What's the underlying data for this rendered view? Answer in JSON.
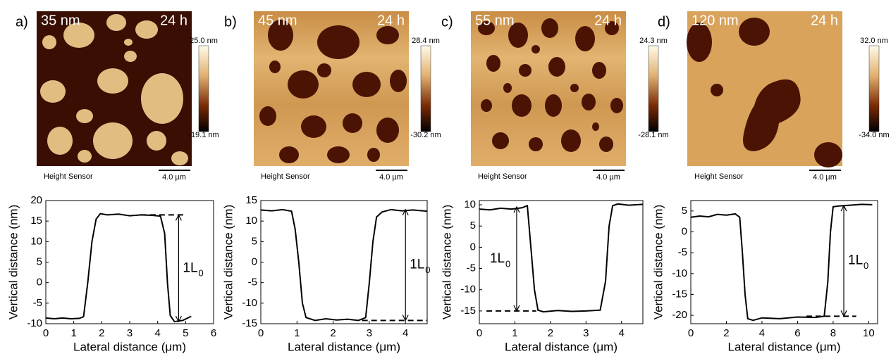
{
  "panels": [
    {
      "label": "a)",
      "thickness": "35 nm",
      "time": "24 h",
      "cbar_max": "25.0 nm",
      "cbar_min": "-19.1 nm",
      "sensor": "Height Sensor",
      "scale": "4.0 µm"
    },
    {
      "label": "b)",
      "thickness": "45 nm",
      "time": "24 h",
      "cbar_max": "28.4 nm",
      "cbar_min": "-30.2 nm",
      "sensor": "Height Sensor",
      "scale": "4.0 µm"
    },
    {
      "label": "c)",
      "thickness": "55 nm",
      "time": "24 h",
      "cbar_max": "24.3 nm",
      "cbar_min": "-28.1 nm",
      "sensor": "Height Sensor",
      "scale": "4.0 µm"
    },
    {
      "label": "d)",
      "thickness": "120 nm",
      "time": "24 h",
      "cbar_max": "32.0 nm",
      "cbar_min": "-34.0 nm",
      "sensor": "Height Sensor",
      "scale": "4.0 µm"
    }
  ],
  "chart_data": [
    {
      "type": "line",
      "x_label": "Lateral distance (μm)",
      "y_label": "Vertical distance (nm)",
      "color": "#000000",
      "x": [
        0,
        0.3,
        0.6,
        0.9,
        1.2,
        1.35,
        1.5,
        1.65,
        1.8,
        1.95,
        2.2,
        2.6,
        3,
        3.4,
        3.8,
        4.1,
        4.25,
        4.35,
        4.45,
        4.6,
        4.9,
        5.2
      ],
      "y": [
        -8.6,
        -8.8,
        -8.6,
        -8.8,
        -8.7,
        -8.3,
        0,
        10,
        15.5,
        16.8,
        16.5,
        16.7,
        16.3,
        16.5,
        16.4,
        16.2,
        12,
        0,
        -8,
        -9.5,
        -9.2,
        -8.2
      ],
      "xlim": [
        0,
        6
      ],
      "xticks": [
        0,
        1,
        2,
        3,
        4,
        5,
        6
      ],
      "ylim": [
        -10,
        20
      ],
      "yticks": [
        -10,
        -5,
        0,
        5,
        10,
        15,
        20
      ],
      "reference_level": 16.5,
      "reference_x": [
        3.4,
        5.0
      ],
      "arrow_x": 4.75,
      "arrow_y": [
        -9.5,
        16.5
      ],
      "annotation": "1L",
      "annotation_sub": "0"
    },
    {
      "type": "line",
      "x_label": "Lateral distance (μm)",
      "y_label": "Vertical distance (nm)",
      "color": "#000000",
      "x": [
        0,
        0.3,
        0.6,
        0.85,
        0.95,
        1.05,
        1.15,
        1.25,
        1.5,
        1.8,
        2.1,
        2.4,
        2.7,
        2.9,
        3.0,
        3.1,
        3.2,
        3.35,
        3.6,
        3.9,
        4.2,
        4.6
      ],
      "y": [
        12.7,
        12.5,
        12.8,
        12.4,
        8,
        0,
        -10,
        -13.5,
        -14.2,
        -13.8,
        -14.1,
        -13.9,
        -14.2,
        -13.5,
        -5,
        5,
        11,
        12.2,
        12.8,
        12.5,
        12.7,
        12.4
      ],
      "xlim": [
        0,
        4.6
      ],
      "xticks": [
        0,
        1,
        2,
        3,
        4
      ],
      "ylim": [
        -15,
        15
      ],
      "yticks": [
        -15,
        -10,
        -5,
        0,
        5,
        10,
        15
      ],
      "reference_level": -14.2,
      "reference_x": [
        2.8,
        4.6
      ],
      "arrow_x": 4.0,
      "arrow_y": [
        -14.2,
        12.8
      ],
      "annotation": "1L",
      "annotation_sub": "0"
    },
    {
      "type": "line",
      "x_label": "Lateral distance (μm)",
      "y_label": "Vertical distance (nm)",
      "color": "#000000",
      "x": [
        0,
        0.3,
        0.6,
        0.9,
        1.2,
        1.35,
        1.45,
        1.55,
        1.65,
        1.8,
        2.2,
        2.6,
        3.0,
        3.4,
        3.55,
        3.65,
        3.75,
        3.9,
        4.2,
        4.6
      ],
      "y": [
        9,
        8.8,
        9.2,
        9,
        9.3,
        9.8,
        0,
        -10,
        -14.8,
        -15.2,
        -14.9,
        -15.1,
        -15,
        -14.8,
        -8,
        5,
        9.8,
        10.2,
        9.9,
        10.1
      ],
      "xlim": [
        0,
        4.6
      ],
      "xticks": [
        0,
        1,
        2,
        3,
        4
      ],
      "ylim": [
        -18,
        11
      ],
      "yticks": [
        -15,
        -10,
        -5,
        0,
        5,
        10
      ],
      "reference_level": -15,
      "reference_x": [
        0.2,
        1.6
      ],
      "arrow_x": 1.05,
      "arrow_y": [
        -15,
        9.5
      ],
      "annotation": "1L",
      "annotation_sub": "0"
    },
    {
      "type": "line",
      "x_label": "Lateral distance (μm)",
      "y_label": "Vertical distance (nm)",
      "color": "#000000",
      "x": [
        0,
        0.5,
        1,
        1.5,
        2,
        2.5,
        2.75,
        2.9,
        3.05,
        3.2,
        3.5,
        4,
        5,
        6,
        7,
        7.5,
        7.7,
        7.85,
        8.0,
        8.3,
        9,
        9.6,
        10.2
      ],
      "y": [
        3.5,
        3.8,
        3.6,
        4.2,
        4.0,
        4.3,
        3.5,
        -5,
        -15,
        -20.8,
        -21.2,
        -20.6,
        -20.8,
        -20.4,
        -20.5,
        -20.2,
        -12,
        0,
        6,
        6.2,
        6.4,
        6.6,
        6.5
      ],
      "xlim": [
        0,
        10.5
      ],
      "xticks": [
        0,
        2,
        4,
        6,
        8,
        10
      ],
      "ylim": [
        -22,
        7.5
      ],
      "yticks": [
        -20,
        -15,
        -10,
        -5,
        0,
        5
      ],
      "reference_level": -20.2,
      "reference_x": [
        6.5,
        9.3
      ],
      "arrow_x": 8.6,
      "arrow_y": [
        -20.2,
        6.3
      ],
      "annotation": "1L",
      "annotation_sub": "0"
    }
  ]
}
